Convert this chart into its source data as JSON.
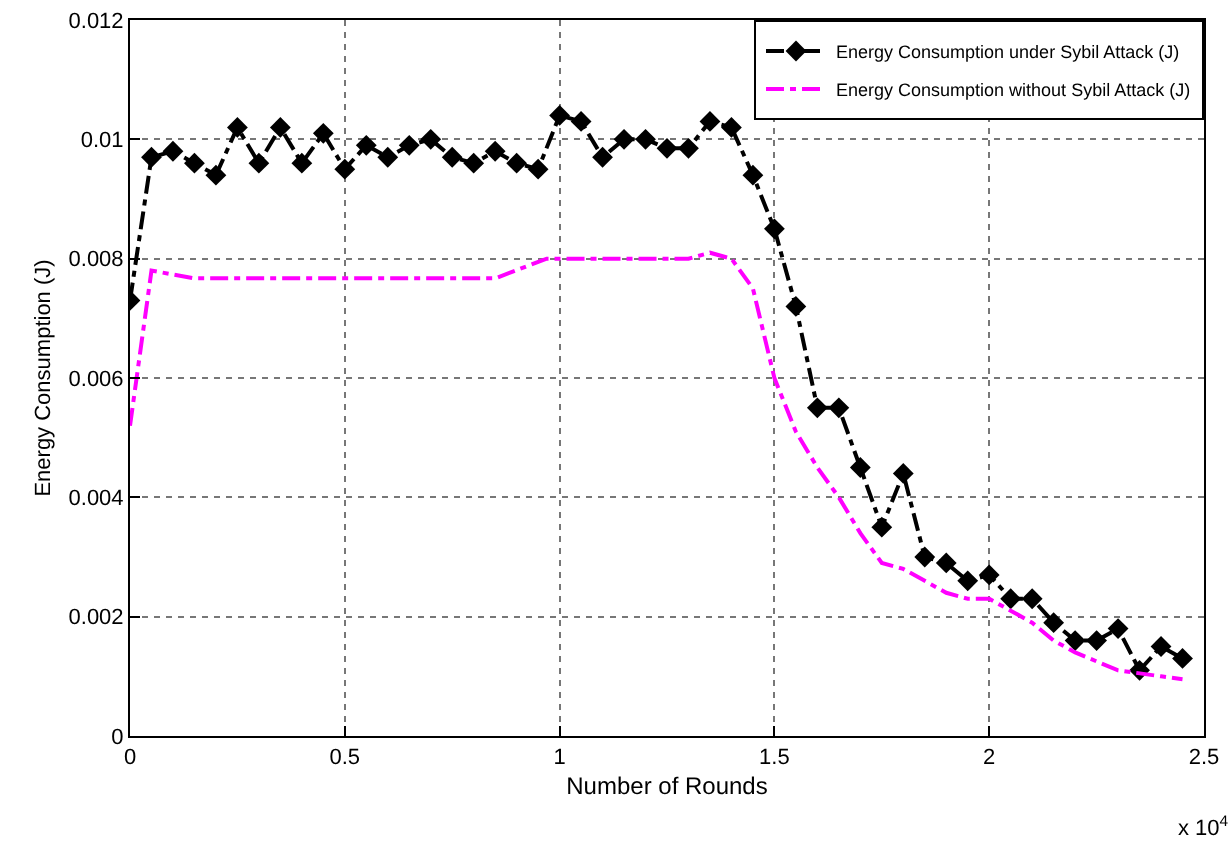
{
  "chart_data": {
    "type": "line",
    "xlabel": "Number of Rounds",
    "ylabel": "Energy Consumption (J)",
    "annotations": [
      "x 10$^{4}$"
    ],
    "xlim": [
      0,
      2.5
    ],
    "ylim": [
      0,
      0.012
    ],
    "xticks": [
      0,
      0.5,
      1,
      1.5,
      2,
      2.5
    ],
    "yticks": [
      0,
      0.002,
      0.004,
      0.006,
      0.008,
      0.01,
      0.012
    ],
    "grid": true,
    "legend": "top right",
    "line_style": "dashed",
    "series": [
      {
        "name": "Energy Consumption under Sybil Attack (J)",
        "color": "#000000",
        "marker": "diamond",
        "x": [
          0,
          0.05,
          0.1,
          0.15,
          0.2,
          0.25,
          0.3,
          0.35,
          0.4,
          0.45,
          0.5,
          0.55,
          0.6,
          0.65,
          0.7,
          0.75,
          0.8,
          0.85,
          0.9,
          0.95,
          1,
          1.05,
          1.1,
          1.15,
          1.2,
          1.25,
          1.3,
          1.35,
          1.4,
          1.45,
          1.5,
          1.55,
          1.6,
          1.65,
          1.7,
          1.75,
          1.8,
          1.85,
          1.9,
          1.95,
          2,
          2.05,
          2.1,
          2.15,
          2.2,
          2.25,
          2.3,
          2.35,
          2.4,
          2.45
        ],
        "values": [
          0.0073,
          0.0097,
          0.0098,
          0.0096,
          0.0094,
          0.0102,
          0.0096,
          0.0102,
          0.0096,
          0.0101,
          0.0095,
          0.0099,
          0.0097,
          0.0099,
          0.01,
          0.0097,
          0.0096,
          0.0098,
          0.0096,
          0.0095,
          0.0104,
          0.0103,
          0.0097,
          0.01,
          0.01,
          0.00985,
          0.00985,
          0.0103,
          0.0102,
          0.0094,
          0.0085,
          0.0072,
          0.0055,
          0.0055,
          0.0045,
          0.0035,
          0.0044,
          0.003,
          0.0029,
          0.0026,
          0.0027,
          0.0023,
          0.0023,
          0.0019,
          0.0016,
          0.0016,
          0.0018,
          0.0011,
          0.0015,
          0.0013
        ]
      },
      {
        "name": "Energy Consumption without Sybil Attack (J)",
        "color": "#ff00ff",
        "marker": "none",
        "x": [
          0,
          0.05,
          0.15,
          0.85,
          0.97,
          1.3,
          1.35,
          1.4,
          1.45,
          1.5,
          1.55,
          1.6,
          1.65,
          1.7,
          1.75,
          1.8,
          1.85,
          1.9,
          1.95,
          2,
          2.05,
          2.1,
          2.15,
          2.2,
          2.3,
          2.4,
          2.45
        ],
        "values": [
          0.0052,
          0.0078,
          0.00767,
          0.00767,
          0.008,
          0.008,
          0.0081,
          0.008,
          0.0075,
          0.006,
          0.0051,
          0.0045,
          0.004,
          0.0034,
          0.0029,
          0.0028,
          0.0026,
          0.0024,
          0.0023,
          0.0023,
          0.0021,
          0.0019,
          0.0016,
          0.0014,
          0.0011,
          0.001,
          0.00095
        ]
      }
    ]
  }
}
